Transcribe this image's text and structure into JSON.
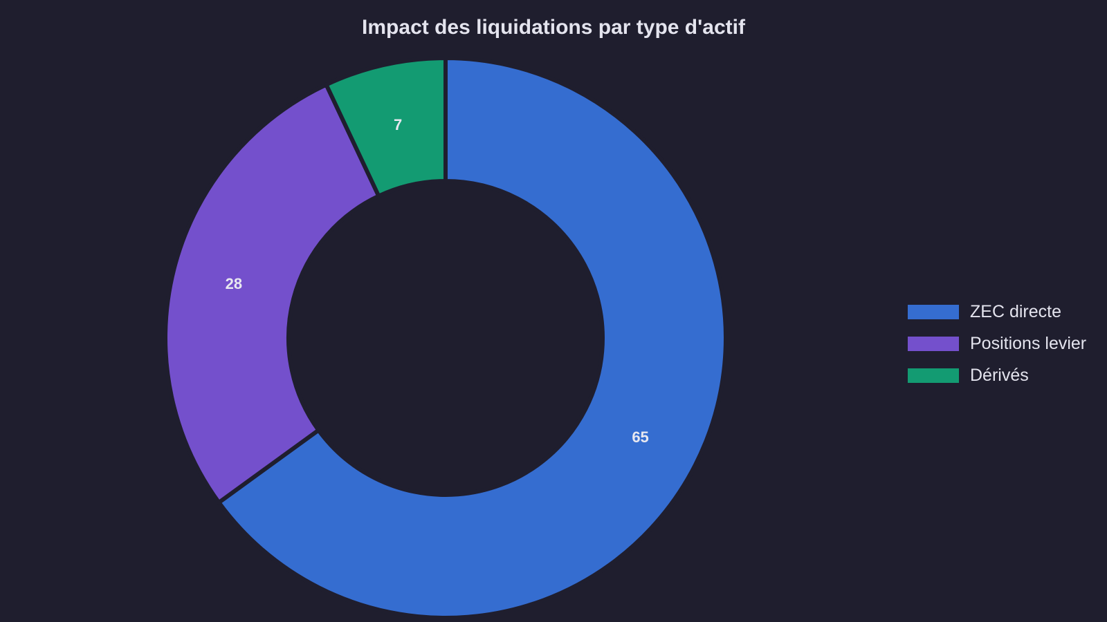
{
  "chart_data": {
    "type": "pie",
    "title": "Impact des liquidations par type d'actif",
    "donut": true,
    "legend_position": "right",
    "slices": [
      {
        "label": "ZEC directe",
        "value": 65,
        "color": "#356dd0"
      },
      {
        "label": "Positions levier",
        "value": 28,
        "color": "#7450cc"
      },
      {
        "label": "Dérivés",
        "value": 7,
        "color": "#139b72"
      }
    ]
  },
  "colors": {
    "background": "#1f1e2e",
    "text": "#e4e4ee"
  }
}
